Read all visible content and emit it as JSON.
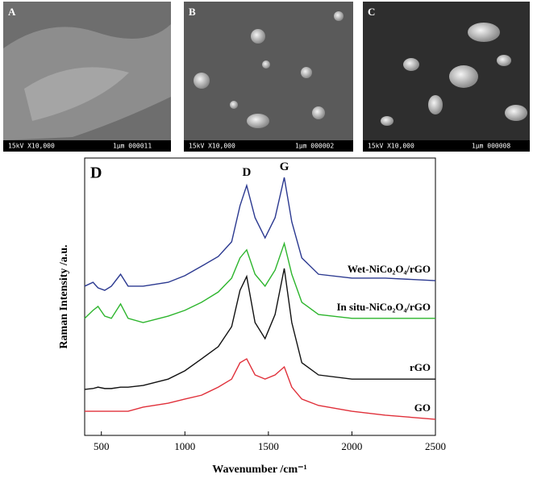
{
  "panels": [
    {
      "label": "A",
      "footer_left": "15kV X10,000",
      "footer_right": "1μm 000011"
    },
    {
      "label": "B",
      "footer_left": "15kV X10,000",
      "footer_right": "1μm 000002"
    },
    {
      "label": "C",
      "footer_left": "15kV X10,000",
      "footer_right": "1μm 000008"
    }
  ],
  "chart_data": {
    "type": "line",
    "panel_label": "D",
    "x_label": "Wavenumber /cm⁻¹",
    "y_label": "Raman Intensity /a.u.",
    "annotations": [
      "D",
      "G"
    ],
    "xlim": [
      400,
      2500
    ],
    "xticks": [
      500,
      1000,
      1500,
      2000,
      2500
    ],
    "ylim": [
      0,
      100
    ],
    "x": [
      400,
      450,
      480,
      520,
      560,
      615,
      660,
      750,
      900,
      1000,
      1100,
      1200,
      1280,
      1330,
      1370,
      1420,
      1480,
      1540,
      1595,
      1640,
      1700,
      1800,
      2000,
      2200,
      2500
    ],
    "series": [
      {
        "name": "Wet-NiCo₂O₄/rGO",
        "color": "#2b3990",
        "values": [
          53.8,
          55.2,
          53.2,
          52.3,
          53.8,
          58.1,
          53.8,
          53.8,
          55.2,
          57.6,
          61.0,
          64.5,
          69.8,
          82.8,
          90.1,
          78.5,
          71.2,
          78.5,
          93.0,
          77.0,
          64.0,
          58.1,
          56.7,
          56.7,
          55.8
        ]
      },
      {
        "name": "In situ-NiCo₂O₄/rGO",
        "color": "#2db52d",
        "values": [
          42.2,
          45.1,
          46.5,
          43.0,
          42.2,
          47.4,
          42.2,
          40.7,
          43.0,
          45.1,
          48.0,
          51.7,
          56.7,
          64.0,
          66.9,
          58.1,
          53.8,
          59.6,
          69.2,
          58.1,
          48.0,
          43.6,
          42.2,
          42.2,
          42.2
        ]
      },
      {
        "name": "rGO",
        "color": "#111111",
        "values": [
          16.6,
          16.9,
          17.4,
          16.9,
          16.9,
          17.4,
          17.4,
          18.0,
          20.3,
          23.3,
          27.6,
          32.0,
          39.2,
          52.3,
          57.3,
          40.7,
          34.9,
          43.6,
          60.2,
          40.7,
          26.2,
          21.8,
          20.3,
          20.3,
          20.3
        ]
      },
      {
        "name": "GO",
        "color": "#e0303a",
        "values": [
          8.7,
          8.7,
          8.7,
          8.7,
          8.7,
          8.7,
          8.7,
          10.2,
          11.6,
          13.1,
          14.5,
          17.4,
          20.3,
          26.2,
          27.6,
          21.8,
          20.3,
          21.8,
          24.7,
          17.4,
          13.1,
          10.8,
          8.7,
          7.3,
          5.8
        ]
      }
    ]
  }
}
